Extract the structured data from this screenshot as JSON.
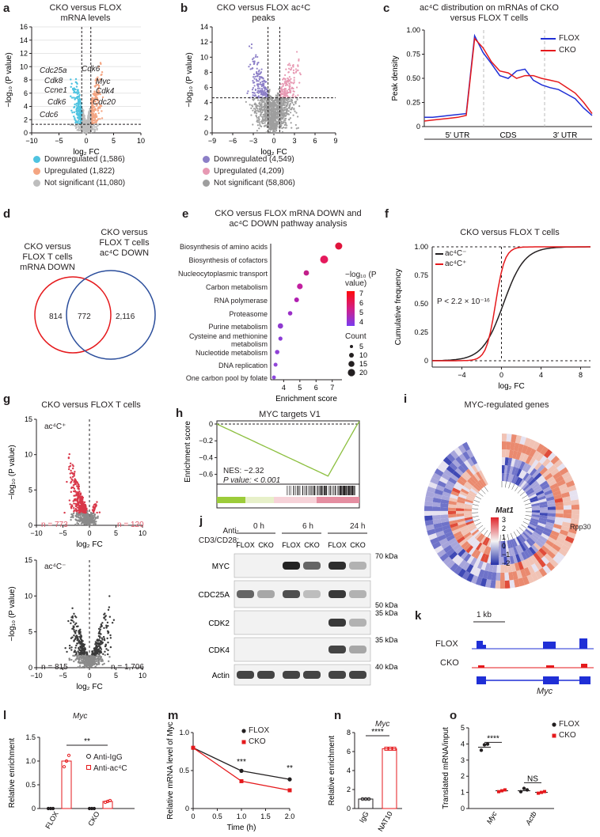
{
  "panels": {
    "a": {
      "label": "a",
      "title": "CKO versus FLOX mRNA levels",
      "xlabel": "log₂ FC",
      "ylabel": "−log₁₀ (P value)",
      "xticks": [
        "−10",
        "−5",
        "0",
        "5",
        "10"
      ],
      "yticks": [
        "0",
        "2",
        "4",
        "6",
        "8",
        "10",
        "12",
        "14",
        "16"
      ],
      "genes": [
        "Cdc25a",
        "Cdk6",
        "Ccne1",
        "Cdk8",
        "Cdc6",
        "Cdk6",
        "Myc",
        "Cdk4",
        "Cdc20"
      ],
      "legend": [
        "Downregulated (1,586)",
        "Upregulated (1,822)",
        "Not significant (11,080)"
      ],
      "colors": {
        "down": "#4fc3e0",
        "up": "#f4a582",
        "ns": "#bdbdbd"
      }
    },
    "b": {
      "label": "b",
      "title": "CKO versus FLOX ac⁴C peaks",
      "xlabel": "log₂ FC",
      "ylabel": "−log₁₀ (P value)",
      "xticks": [
        "−9",
        "−6",
        "−3",
        "0",
        "3",
        "6",
        "9"
      ],
      "yticks": [
        "0",
        "2",
        "4",
        "6",
        "8",
        "10",
        "12",
        "14"
      ],
      "legend": [
        "Downregulated (4,549)",
        "Upregulated (4,209)",
        "Not significant (58,806)"
      ],
      "colors": {
        "down": "#8c7fc7",
        "up": "#e799b3",
        "ns": "#9e9e9e"
      }
    },
    "c": {
      "label": "c",
      "title": "ac⁴C distribution on mRNAs of CKO versus FLOX T cells",
      "ylabel": "Peak density",
      "yticks": [
        "0",
        "0.25",
        "0.50",
        "0.75",
        "1.00"
      ],
      "xcats": [
        "5′ UTR",
        "CDS",
        "3′ UTR"
      ],
      "legend": [
        "FLOX",
        "CKO"
      ],
      "colors": {
        "flox": "#1f2fd6",
        "cko": "#e5191c"
      }
    },
    "d": {
      "label": "d",
      "left": "CKO versus FLOX T cells mRNA DOWN",
      "right": "CKO versus FLOX T cells ac⁴C DOWN",
      "n_left": "814",
      "n_mid": "772",
      "n_right": "2,116"
    },
    "e": {
      "label": "e",
      "title": "CKO versus FLOX mRNA DOWN and ac⁴C DOWN pathway analysis",
      "xlabel": "Enrichment score",
      "xticks": [
        "4",
        "5",
        "6",
        "7"
      ],
      "pathways": [
        "Biosynthesis of amino acids",
        "Biosynthesis of cofactors",
        "Nucleocytoplasmic transport",
        "Carbon metabolism",
        "RNA polymerase",
        "Proteasome",
        "Purine metabolism",
        "Cysteine and methionine metabolism",
        "Nucleotide metabolism",
        "DNA replication",
        "One carbon pool by folate"
      ],
      "legend_color_title": "−log₁₀ (P value)",
      "color_ticks": [
        "7",
        "6",
        "5",
        "4"
      ],
      "legend_size_title": "Count",
      "size_ticks": [
        "5",
        "10",
        "15",
        "20"
      ]
    },
    "f": {
      "label": "f",
      "title": "CKO versus FLOX T cells",
      "xlabel": "log₂ FC",
      "ylabel": "Cumulative frequency",
      "yticks": [
        "0",
        "0.25",
        "0.50",
        "0.75",
        "1.00"
      ],
      "xticks": [
        "−4",
        "0",
        "4",
        "8"
      ],
      "legend": [
        "ac⁴C⁻",
        "ac⁴C⁺"
      ],
      "pval": "P < 2.2 × 10⁻¹⁶"
    },
    "g": {
      "label": "g",
      "title": "CKO versus FLOX T cells",
      "xlabel": "log₂ FC",
      "ylabel": "−log₁₀ (P value)",
      "top_tag": "ac⁴C⁺",
      "bottom_tag": "ac⁴C⁻",
      "top_n_left": "n = 773",
      "top_n_right": "n = 120",
      "bottom_n_left": "n = 815",
      "bottom_n_right": "n = 1,706",
      "top_yticks": [
        "0",
        "5",
        "10",
        "15"
      ],
      "bottom_yticks": [
        "0",
        "5",
        "10",
        "15"
      ],
      "xticks": [
        "−10",
        "−5",
        "0",
        "5",
        "10"
      ]
    },
    "h": {
      "label": "h",
      "title": "MYC targets V1",
      "ylabel": "Enrichment score",
      "yticks": [
        "0",
        "−0.2",
        "−0.4",
        "−0.6"
      ],
      "nes": "NES: −2.32",
      "pval": "P value: < 0.001"
    },
    "i": {
      "label": "i",
      "title": "MYC-regulated genes",
      "gene": "Mat1",
      "scale": [
        "3",
        "2",
        "1",
        "0",
        "−1",
        "−2"
      ],
      "tag": "Rpp30"
    },
    "j": {
      "label": "j",
      "stim": "Anti-CD3/CD28:",
      "times": [
        "0 h",
        "6 h",
        "24 h"
      ],
      "lanes": [
        "FLOX",
        "CKO",
        "FLOX",
        "CKO",
        "FLOX",
        "CKO"
      ],
      "rows": [
        "MYC",
        "CDC25A",
        "CDK2",
        "CDK4",
        "Actin"
      ],
      "kda": [
        "70 kDa",
        "50 kDa",
        "35 kDa",
        "35 kDa",
        "40 kDa"
      ]
    },
    "k": {
      "label": "k",
      "scale": "1 kb",
      "tracks": [
        "FLOX",
        "CKO"
      ],
      "gene": "Myc"
    },
    "l": {
      "label": "l",
      "title": "Myc",
      "ylabel": "Relative enrichment",
      "yticks": [
        "0",
        "0.5",
        "1.0",
        "1.5"
      ],
      "xcats": [
        "FLOX",
        "CKO"
      ],
      "legend": [
        "Anti-IgG",
        "Anti-ac⁴C"
      ],
      "sig": "**"
    },
    "m": {
      "label": "m",
      "ylabel": "Relative mRNA level of Myc",
      "xlabel": "Time (h)",
      "xticks": [
        "0",
        "0.5",
        "1.0",
        "1.5",
        "2.0"
      ],
      "yticks": [
        "0",
        "0.5",
        "1.0"
      ],
      "legend": [
        "FLOX",
        "CKO"
      ],
      "sig1": "***",
      "sig2": "**"
    },
    "n": {
      "label": "n",
      "title": "Myc",
      "ylabel": "Relative enrichment",
      "yticks": [
        "0",
        "2",
        "4",
        "6",
        "8"
      ],
      "xcats": [
        "IgG",
        "NAT10"
      ],
      "sig": "****"
    },
    "o": {
      "label": "o",
      "ylabel": "Translated mRNA/input",
      "yticks": [
        "0",
        "1",
        "2",
        "3",
        "4",
        "5"
      ],
      "xcats": [
        "Myc",
        "Actb"
      ],
      "legend": [
        "FLOX",
        "CKO"
      ],
      "sig1": "****",
      "sig2": "NS"
    }
  },
  "chart_data": [
    {
      "type": "line",
      "panel": "c",
      "series": [
        {
          "name": "FLOX"
        },
        {
          "name": "CKO"
        }
      ]
    },
    {
      "type": "scatter",
      "panel": "e",
      "x": [
        7.4,
        6.5,
        5.4,
        5.0,
        4.8,
        4.4,
        3.8,
        3.8,
        3.6,
        3.5,
        3.4
      ],
      "categories": [
        "Biosynthesis of amino acids",
        "Biosynthesis of cofactors",
        "Nucleocytoplasmic transport",
        "Carbon metabolism",
        "RNA polymerase",
        "Proteasome",
        "Purine metabolism",
        "Cysteine and methionine metabolism",
        "Nucleotide metabolism",
        "DNA replication",
        "One carbon pool by folate"
      ]
    },
    {
      "type": "line",
      "panel": "m",
      "x": [
        0,
        1.0,
        2.0
      ],
      "series": [
        {
          "name": "FLOX",
          "values": [
            1.0,
            0.62,
            0.48
          ]
        },
        {
          "name": "CKO",
          "values": [
            1.0,
            0.45,
            0.3
          ]
        }
      ]
    },
    {
      "type": "bar",
      "panel": "l",
      "categories": [
        "FLOX",
        "CKO"
      ],
      "series": [
        {
          "name": "Anti-IgG",
          "values": [
            0.0,
            0.0
          ]
        },
        {
          "name": "Anti-ac⁴C",
          "values": [
            1.0,
            0.15
          ]
        }
      ]
    },
    {
      "type": "bar",
      "panel": "n",
      "categories": [
        "IgG",
        "NAT10"
      ],
      "values": [
        1.0,
        6.3
      ]
    },
    {
      "type": "scatter",
      "panel": "o",
      "categories": [
        "Myc",
        "Actb"
      ],
      "series": [
        {
          "name": "FLOX",
          "values": [
            3.8,
            1.1
          ]
        },
        {
          "name": "CKO",
          "values": [
            1.1,
            1.0
          ]
        }
      ]
    }
  ]
}
